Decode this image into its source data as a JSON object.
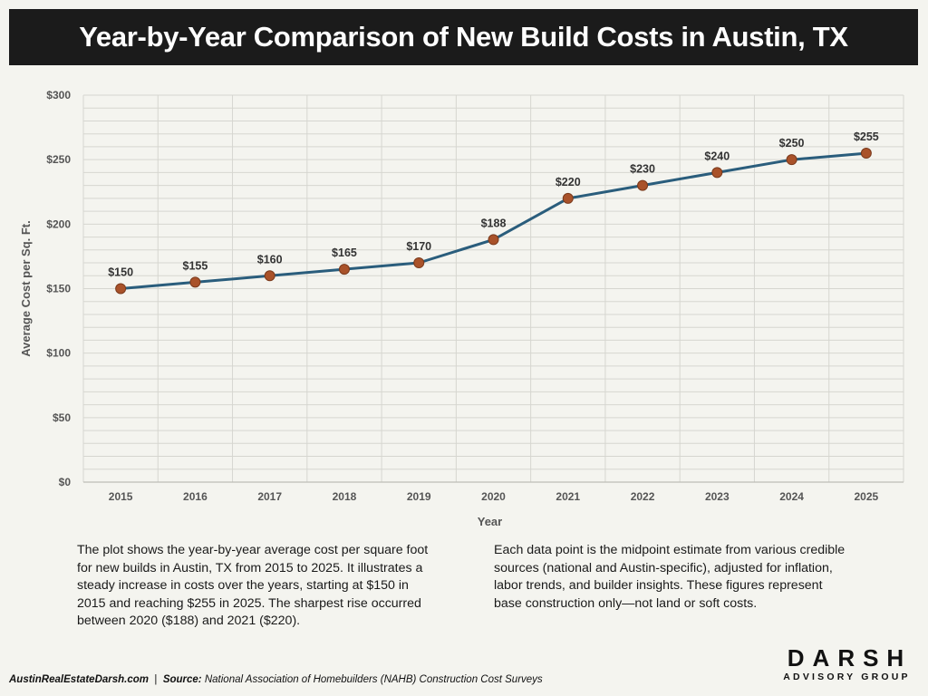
{
  "title": "Year-by-Year Comparison of New Build Costs in Austin, TX",
  "chart_data": {
    "type": "line",
    "title": "",
    "xlabel": "Year",
    "ylabel": "Average Cost per Sq. Ft.",
    "x": [
      "2015",
      "2016",
      "2017",
      "2018",
      "2019",
      "2020",
      "2021",
      "2022",
      "2023",
      "2024",
      "2025"
    ],
    "values": [
      150,
      155,
      160,
      165,
      170,
      188,
      220,
      230,
      240,
      250,
      255
    ],
    "data_labels": [
      "$150",
      "$155",
      "$160",
      "$165",
      "$170",
      "$188",
      "$220",
      "$230",
      "$240",
      "$250",
      "$255"
    ],
    "ylim": [
      0,
      300
    ],
    "yticks": [
      0,
      50,
      100,
      150,
      200,
      250,
      300
    ],
    "ytick_labels": [
      "$0",
      "$50",
      "$100",
      "$150",
      "$200",
      "$250",
      "$300"
    ],
    "grid": true,
    "legend": "none",
    "line_color": "#2a5d7c",
    "marker_color": "#a9522a"
  },
  "description": {
    "left": "The plot shows the year-by-year average cost per square foot for new builds in Austin, TX from 2015 to 2025. It illustrates a steady increase in costs over the years, starting at $150 in 2015 and reaching $255 in 2025. The sharpest rise occurred between 2020 ($188) and 2021 ($220).",
    "right": "Each data point is the midpoint estimate from various credible sources (national and Austin-specific), adjusted for inflation, labor trends, and builder insights. These figures represent base construction only—not land or soft costs."
  },
  "footer": {
    "site": "AustinRealEstateDarsh.com",
    "separator": "|",
    "source_label": "Source:",
    "source_text": "National Association of Homebuilders (NAHB) Construction Cost Surveys"
  },
  "logo": {
    "main": "DARSH",
    "sub": "ADVISORY GROUP"
  }
}
